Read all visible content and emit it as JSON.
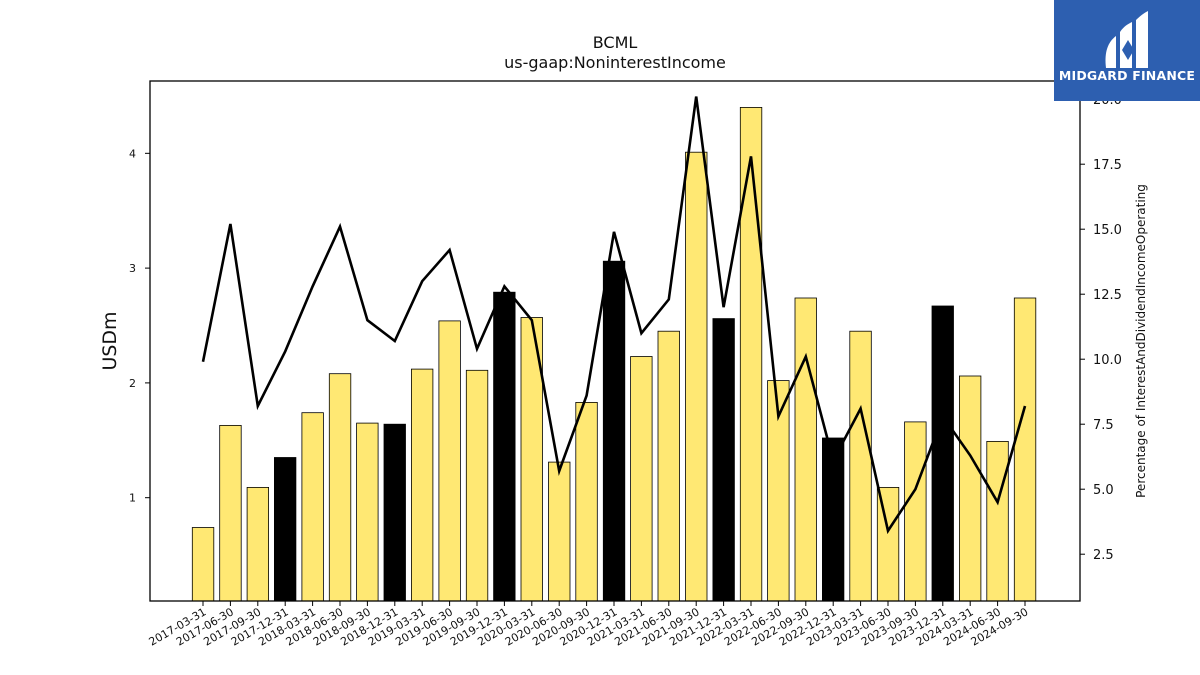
{
  "chart_data": {
    "type": "bar",
    "title": "BCML",
    "subtitle": "us-gaap:NoninterestIncome",
    "ylabel": "USDm",
    "y2label": "Percentage of InterestAndDividendIncomeOperating",
    "categories": [
      "2017-03-31",
      "2017-06-30",
      "2017-09-30",
      "2017-12-31",
      "2018-03-31",
      "2018-06-30",
      "2018-09-30",
      "2018-12-31",
      "2019-03-31",
      "2019-06-30",
      "2019-09-30",
      "2019-12-31",
      "2020-03-31",
      "2020-06-30",
      "2020-09-30",
      "2020-12-31",
      "2021-03-31",
      "2021-06-30",
      "2021-09-30",
      "2021-12-31",
      "2022-03-31",
      "2022-06-30",
      "2022-09-30",
      "2022-12-31",
      "2023-03-31",
      "2023-06-30",
      "2023-09-30",
      "2023-12-31",
      "2024-03-31",
      "2024-06-30",
      "2024-09-30"
    ],
    "series": [
      {
        "type": "bar",
        "axis": "left",
        "values": [
          0.74,
          1.63,
          1.09,
          1.35,
          1.74,
          2.08,
          1.65,
          1.64,
          2.12,
          2.54,
          2.11,
          2.79,
          2.57,
          1.31,
          1.83,
          3.06,
          2.23,
          2.45,
          4.01,
          2.56,
          4.4,
          2.02,
          2.74,
          1.52,
          2.45,
          1.09,
          1.66,
          2.67,
          2.06,
          1.49,
          2.74
        ],
        "highlight": [
          false,
          false,
          false,
          true,
          false,
          false,
          false,
          true,
          false,
          false,
          false,
          true,
          false,
          false,
          false,
          true,
          false,
          false,
          false,
          true,
          false,
          false,
          false,
          true,
          false,
          false,
          false,
          true,
          false,
          false,
          false
        ]
      },
      {
        "type": "line",
        "axis": "right",
        "values": [
          9.9,
          15.2,
          8.2,
          10.3,
          12.8,
          15.1,
          11.5,
          10.7,
          13.0,
          14.2,
          10.4,
          12.8,
          11.5,
          5.7,
          8.6,
          14.9,
          11.0,
          12.3,
          20.1,
          12.0,
          17.8,
          7.8,
          10.1,
          6.1,
          8.1,
          3.4,
          5.0,
          7.8,
          6.3,
          4.5,
          8.2
        ]
      }
    ],
    "ylim": [
      0.1,
      4.63
    ],
    "yticks": [
      1,
      2,
      3,
      4
    ],
    "y2lim": [
      0.7,
      20.7
    ],
    "y2ticks": [
      2.5,
      5.0,
      7.5,
      10.0,
      12.5,
      15.0,
      17.5,
      20.0
    ],
    "colors": {
      "bar": "#ffe873",
      "bar_highlight": "#000000",
      "bar_edge": "#000000",
      "line": "#000000"
    },
    "grid": false,
    "legend": "none"
  },
  "logo": {
    "text": "MIDGARD FINANCE",
    "icon": "midgard-m-icon",
    "color": "#2d5fb0"
  }
}
